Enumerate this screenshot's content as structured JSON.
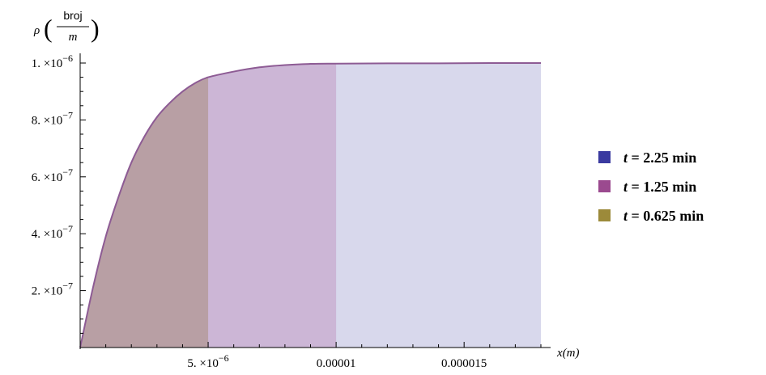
{
  "chart_data": {
    "type": "area",
    "title": "",
    "xlabel": "x(m)",
    "ylabel": {
      "rho": "ρ",
      "numerator": "broj",
      "denominator": "m"
    },
    "xlim": [
      0,
      1.8e-05
    ],
    "ylim": [
      0,
      1e-06
    ],
    "x_ticks": [
      {
        "value": 5e-06,
        "mantissa": "5.",
        "times": "×",
        "base": "10",
        "exp": "−6"
      },
      {
        "value": 1e-05,
        "label": "0.00001"
      },
      {
        "value": 1.5e-05,
        "label": "0.000015"
      }
    ],
    "y_ticks": [
      {
        "value": 2e-07,
        "mantissa": "2.",
        "times": "×",
        "base": "10",
        "exp": "−7"
      },
      {
        "value": 4e-07,
        "mantissa": "4.",
        "times": "×",
        "base": "10",
        "exp": "−7"
      },
      {
        "value": 6e-07,
        "mantissa": "6.",
        "times": "×",
        "base": "10",
        "exp": "−7"
      },
      {
        "value": 8e-07,
        "mantissa": "8.",
        "times": "×",
        "base": "10",
        "exp": "−7"
      },
      {
        "value": 1e-06,
        "mantissa": "1.",
        "times": "×",
        "base": "10",
        "exp": "−6"
      }
    ],
    "curve": {
      "x": [
        0,
        5e-07,
        1e-06,
        1.5e-06,
        2e-06,
        2.5e-06,
        3e-06,
        3.5e-06,
        4e-06,
        4.5e-06,
        5e-06,
        6e-06,
        7e-06,
        8e-06,
        9e-06,
        1e-05,
        1.2e-05,
        1.4e-05,
        1.6e-05,
        1.8e-05
      ],
      "y": [
        0,
        2.1e-07,
        3.9e-07,
        5.3e-07,
        6.5e-07,
        7.4e-07,
        8.1e-07,
        8.6e-07,
        9e-07,
        9.3e-07,
        9.5e-07,
        9.7e-07,
        9.85e-07,
        9.93e-07,
        9.97e-07,
        9.98e-07,
        9.99e-07,
        9.99e-07,
        1e-06,
        1e-06
      ]
    },
    "series": [
      {
        "name": "t = 2.25 min",
        "t": "2.25",
        "x_end": 1.8e-05,
        "fill": "#d8d8ec",
        "swatch": "#3a3aa0"
      },
      {
        "name": "t = 1.25 min",
        "t": "1.25",
        "x_end": 1e-05,
        "fill": "#ccb6d6",
        "swatch": "#9b4a8f"
      },
      {
        "name": "t = 0.625 min",
        "t": "0.625",
        "x_end": 5e-06,
        "fill": "#b89fa4",
        "swatch": "#9c8a3a"
      }
    ],
    "legend": {
      "position": "right",
      "var": "t",
      "eq": "=",
      "unit": "min"
    },
    "line_color": "#8d5b94",
    "grid": false
  }
}
